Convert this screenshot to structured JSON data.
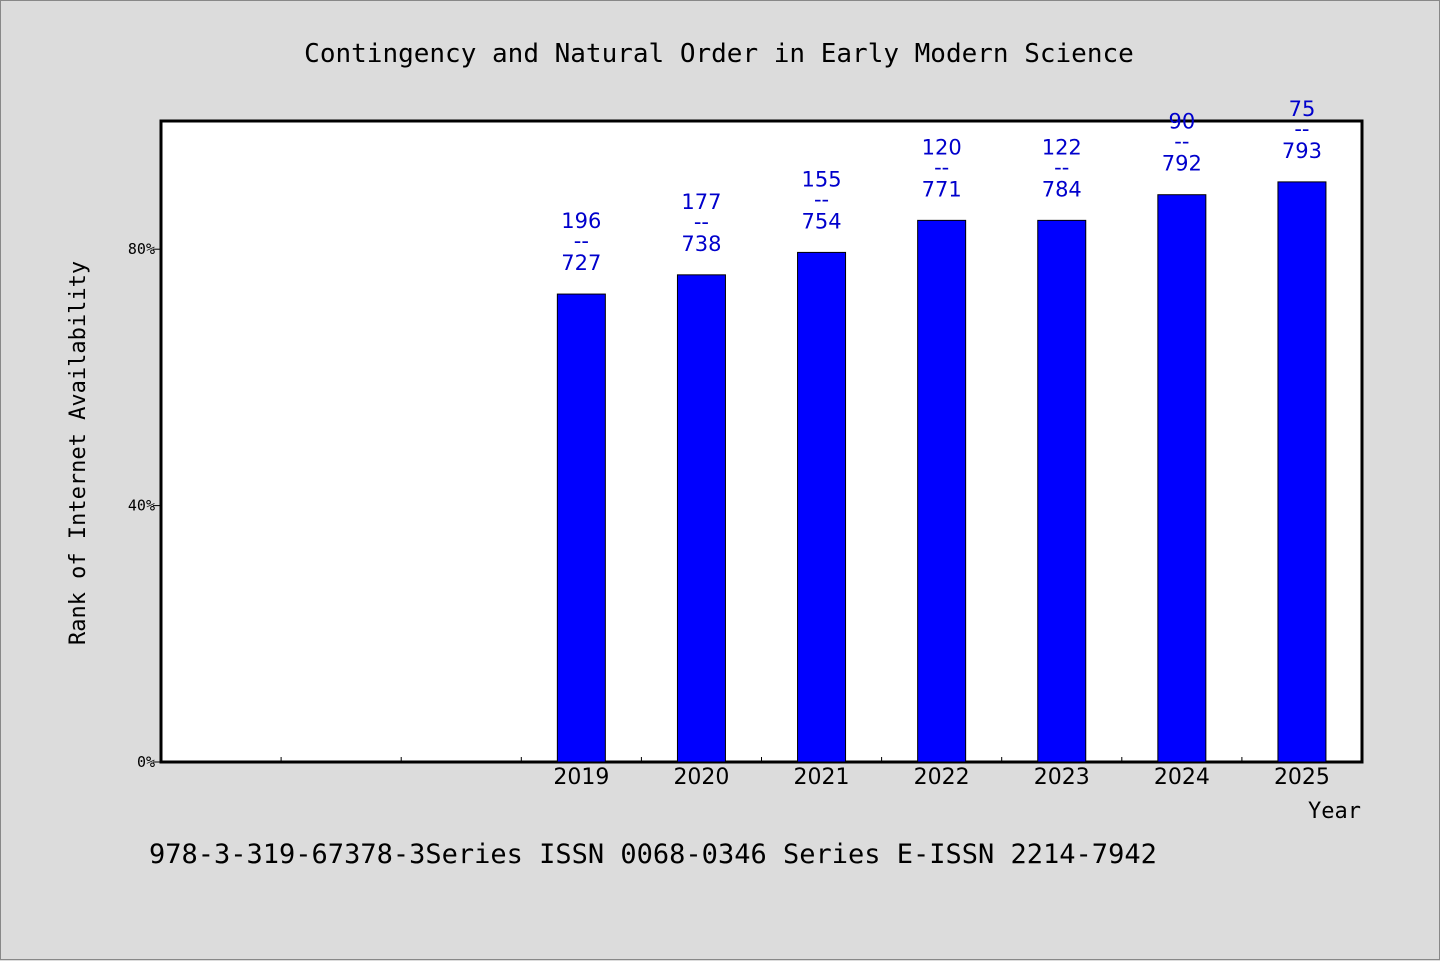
{
  "colors": {
    "page_background": "#dcdcdc",
    "plot_background": "#ffffff",
    "bar": "#0000ff",
    "data_label": "#0000cc"
  },
  "footer": "978-3-319-67378-3Series ISSN 0068-0346 Series E-ISSN 2214-7942",
  "chart_data": {
    "type": "bar",
    "title": "Contingency and Natural Order in Early Modern Science",
    "xlabel": "Year",
    "ylabel": "Rank of Internet Availability",
    "ylim": [
      0,
      100
    ],
    "yticks": [
      {
        "value": 0,
        "label": "0%"
      },
      {
        "value": 40,
        "label": "40%"
      },
      {
        "value": 80,
        "label": "80%"
      }
    ],
    "grid": false,
    "legend": "none",
    "x_slots": 10,
    "categories": [
      "2019",
      "2020",
      "2021",
      "2022",
      "2023",
      "2024",
      "2025"
    ],
    "values": [
      73,
      76,
      79.5,
      84.5,
      84.5,
      88.5,
      90.5
    ],
    "label_top": [
      "196",
      "177",
      "155",
      "120",
      "122",
      "90",
      "75"
    ],
    "label_bottom": [
      "727",
      "738",
      "754",
      "771",
      "784",
      "792",
      "793"
    ],
    "label_separator": "--"
  }
}
